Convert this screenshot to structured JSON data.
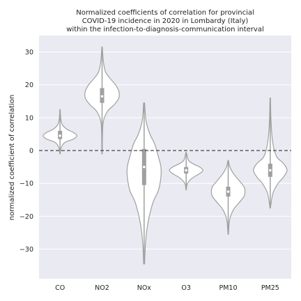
{
  "chart_data": {
    "type": "violin",
    "title_lines": [
      "Normalized coefficients of correlation for provincial",
      "COVID-19 incidence in 2020 in Lombardy (Italy)",
      "within the infection-to-diagnosis-communication interval"
    ],
    "xlabel": "",
    "ylabel": "normalized coefficient of correlation",
    "ylim": [
      -39,
      35
    ],
    "yticks": [
      -30,
      -20,
      -10,
      0,
      10,
      20,
      30
    ],
    "grid": true,
    "reference_line": 0,
    "categories": [
      "CO",
      "NO2",
      "NOx",
      "O3",
      "PM10",
      "PM25"
    ],
    "colors": {
      "background": "#eaeaf2",
      "violin_fill": "#ffffff",
      "violin_line": "#a0a0a0",
      "box": "#a0a0a0",
      "median": "#ffffff",
      "reference": "#333333"
    },
    "violins": [
      {
        "category": "CO",
        "min": -1,
        "q1": 3.5,
        "median": 4.5,
        "q3": 6,
        "max": 12.5,
        "profile": [
          [
            -1,
            0.1
          ],
          [
            1,
            0.8
          ],
          [
            2.5,
            3
          ],
          [
            3.5,
            8
          ],
          [
            4.5,
            10
          ],
          [
            5.5,
            8
          ],
          [
            6.5,
            4
          ],
          [
            8,
            1.2
          ],
          [
            10,
            0.4
          ],
          [
            12.5,
            0.1
          ]
        ]
      },
      {
        "category": "NO2",
        "min": -1,
        "q1": 14.5,
        "median": 16.5,
        "q3": 19,
        "max": 31.5,
        "profile": [
          [
            -1,
            0.1
          ],
          [
            5,
            0.2
          ],
          [
            9,
            0.6
          ],
          [
            12,
            2.5
          ],
          [
            14,
            5.5
          ],
          [
            16,
            7.5
          ],
          [
            18,
            7.5
          ],
          [
            20,
            6
          ],
          [
            22,
            3.5
          ],
          [
            24,
            1.5
          ],
          [
            27,
            0.6
          ],
          [
            31.5,
            0.1
          ]
        ]
      },
      {
        "category": "NOx",
        "min": -34.5,
        "q1": -10.5,
        "median": -5,
        "q3": 0.5,
        "max": 14.5,
        "profile": [
          [
            -34.5,
            0.1
          ],
          [
            -28,
            0.3
          ],
          [
            -22,
            0.8
          ],
          [
            -16,
            1.8
          ],
          [
            -12,
            3
          ],
          [
            -8,
            3.5
          ],
          [
            -5,
            3.5
          ],
          [
            -2,
            3
          ],
          [
            2,
            2.2
          ],
          [
            5,
            1.2
          ],
          [
            9,
            0.4
          ],
          [
            14.5,
            0.1
          ]
        ]
      },
      {
        "category": "O3",
        "min": -12,
        "q1": -7,
        "median": -6,
        "q3": -5,
        "max": -0.5,
        "profile": [
          [
            -12,
            0.1
          ],
          [
            -10,
            1.2
          ],
          [
            -8.5,
            5
          ],
          [
            -7,
            12
          ],
          [
            -6,
            15
          ],
          [
            -5,
            12
          ],
          [
            -4,
            6
          ],
          [
            -3,
            2.2
          ],
          [
            -1.5,
            0.8
          ],
          [
            -0.5,
            0.1
          ]
        ]
      },
      {
        "category": "PM10",
        "min": -25.5,
        "q1": -14,
        "median": -12.5,
        "q3": -11,
        "max": -3,
        "profile": [
          [
            -25.5,
            0.1
          ],
          [
            -21,
            0.7
          ],
          [
            -18,
            2.5
          ],
          [
            -16,
            5
          ],
          [
            -14,
            7.5
          ],
          [
            -12.5,
            8
          ],
          [
            -11,
            7.5
          ],
          [
            -9,
            5
          ],
          [
            -7,
            2.5
          ],
          [
            -5,
            0.8
          ],
          [
            -3,
            0.1
          ]
        ]
      },
      {
        "category": "PM25",
        "min": -17.5,
        "q1": -8,
        "median": -6,
        "q3": -4,
        "max": 16,
        "profile": [
          [
            -17.5,
            0.1
          ],
          [
            -13,
            1.2
          ],
          [
            -10,
            3.5
          ],
          [
            -8,
            6
          ],
          [
            -6,
            7.5
          ],
          [
            -4,
            6
          ],
          [
            -2,
            3
          ],
          [
            1,
            1.5
          ],
          [
            5,
            0.7
          ],
          [
            10,
            0.3
          ],
          [
            16,
            0.1
          ]
        ]
      }
    ]
  }
}
